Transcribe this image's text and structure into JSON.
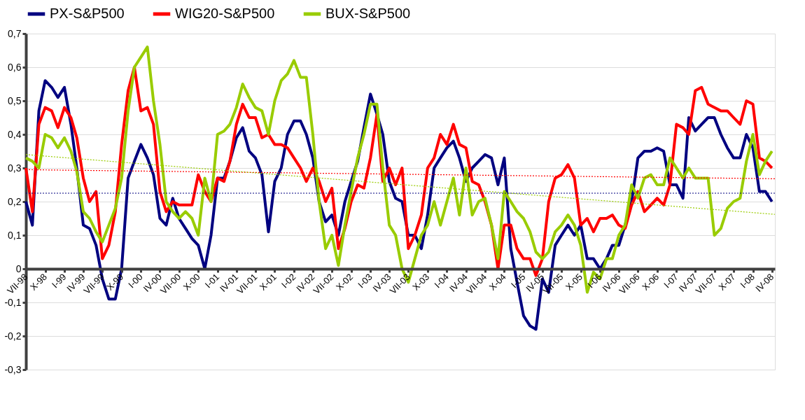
{
  "chart_data": {
    "type": "line",
    "x": [
      "1998-07",
      "1998-08",
      "1998-09",
      "1998-10",
      "1998-11",
      "1998-12",
      "1999-01",
      "1999-02",
      "1999-03",
      "1999-04",
      "1999-05",
      "1999-06",
      "1999-07",
      "1999-08",
      "1999-09",
      "1999-10",
      "1999-11",
      "1999-12",
      "2000-01",
      "2000-02",
      "2000-03",
      "2000-04",
      "2000-05",
      "2000-06",
      "2000-07",
      "2000-08",
      "2000-09",
      "2000-10",
      "2000-11",
      "2000-12",
      "2001-01",
      "2001-02",
      "2001-03",
      "2001-04",
      "2001-05",
      "2001-06",
      "2001-07",
      "2001-08",
      "2001-09",
      "2001-10",
      "2001-11",
      "2001-12",
      "2002-01",
      "2002-02",
      "2002-03",
      "2002-04",
      "2002-05",
      "2002-06",
      "2002-07",
      "2002-08",
      "2002-09",
      "2002-10",
      "2002-11",
      "2002-12",
      "2003-01",
      "2003-02",
      "2003-03",
      "2003-04",
      "2003-05",
      "2003-06",
      "2003-07",
      "2003-08",
      "2003-09",
      "2003-10",
      "2003-11",
      "2003-12",
      "2004-01",
      "2004-02",
      "2004-03",
      "2004-04",
      "2004-05",
      "2004-06",
      "2004-07",
      "2004-08",
      "2004-09",
      "2004-10",
      "2004-11",
      "2004-12",
      "2005-01",
      "2005-02",
      "2005-03",
      "2005-04",
      "2005-05",
      "2005-06",
      "2005-07",
      "2005-08",
      "2005-09",
      "2005-10",
      "2005-11",
      "2005-12",
      "2006-01",
      "2006-02",
      "2006-03",
      "2006-04",
      "2006-05",
      "2006-06",
      "2006-07",
      "2006-08",
      "2006-09",
      "2006-10",
      "2006-11",
      "2006-12",
      "2007-01",
      "2007-02",
      "2007-03",
      "2007-04",
      "2007-05",
      "2007-06",
      "2007-07",
      "2007-08",
      "2007-09",
      "2007-10",
      "2007-11",
      "2007-12",
      "2008-01",
      "2008-02",
      "2008-03",
      "2008-04"
    ],
    "xlim": [
      "1998-07",
      "2008-04-15"
    ],
    "xticks": [
      {
        "value": "1998-07",
        "label": "VII-98"
      },
      {
        "value": "1998-10",
        "label": "X-98"
      },
      {
        "value": "1999-01",
        "label": "I-99"
      },
      {
        "value": "1999-04",
        "label": "IV-99"
      },
      {
        "value": "1999-07",
        "label": "VII-99"
      },
      {
        "value": "1999-10",
        "label": "X-99"
      },
      {
        "value": "2000-01",
        "label": "I-00"
      },
      {
        "value": "2000-04",
        "label": "IV-00"
      },
      {
        "value": "2000-07",
        "label": "VII-00"
      },
      {
        "value": "2000-10",
        "label": "X-00"
      },
      {
        "value": "2001-01",
        "label": "I-01"
      },
      {
        "value": "2001-04",
        "label": "IV-01"
      },
      {
        "value": "2001-07",
        "label": "VII-01"
      },
      {
        "value": "2001-10",
        "label": "X-01"
      },
      {
        "value": "2002-01",
        "label": "I-02"
      },
      {
        "value": "2002-04",
        "label": "IV-02"
      },
      {
        "value": "2002-07",
        "label": "VII-02"
      },
      {
        "value": "2002-10",
        "label": "X-02"
      },
      {
        "value": "2003-01",
        "label": "I-03"
      },
      {
        "value": "2003-04",
        "label": "IV-03"
      },
      {
        "value": "2003-07",
        "label": "VII-03"
      },
      {
        "value": "2003-10",
        "label": "X-03"
      },
      {
        "value": "2004-01",
        "label": "I-04"
      },
      {
        "value": "2004-04",
        "label": "IV-04"
      },
      {
        "value": "2004-07",
        "label": "VII-04"
      },
      {
        "value": "2004-10",
        "label": "X-04"
      },
      {
        "value": "2005-01",
        "label": "I-05"
      },
      {
        "value": "2005-04",
        "label": "IV-05"
      },
      {
        "value": "2005-07",
        "label": "VII-05"
      },
      {
        "value": "2005-10",
        "label": "X-05"
      },
      {
        "value": "2006-01",
        "label": "I-06"
      },
      {
        "value": "2006-04",
        "label": "IV-06"
      },
      {
        "value": "2006-07",
        "label": "VII-06"
      },
      {
        "value": "2006-10",
        "label": "X-06"
      },
      {
        "value": "2007-01",
        "label": "I-07"
      },
      {
        "value": "2007-04",
        "label": "IV-07"
      },
      {
        "value": "2007-07",
        "label": "VII-07"
      },
      {
        "value": "2007-10",
        "label": "X-07"
      },
      {
        "value": "2008-01",
        "label": "I-08"
      },
      {
        "value": "2008-04",
        "label": "IV-08"
      }
    ],
    "ylim": [
      -0.3,
      0.7
    ],
    "yticks": [
      {
        "value": -0.3,
        "label": "-0,3"
      },
      {
        "value": -0.2,
        "label": "-0,2"
      },
      {
        "value": -0.1,
        "label": "-0,1"
      },
      {
        "value": 0,
        "label": "0"
      },
      {
        "value": 0.1,
        "label": "0,1"
      },
      {
        "value": 0.2,
        "label": "0,2"
      },
      {
        "value": 0.3,
        "label": "0,3"
      },
      {
        "value": 0.4,
        "label": "0,4"
      },
      {
        "value": 0.5,
        "label": "0,5"
      },
      {
        "value": 0.6,
        "label": "0,6"
      },
      {
        "value": 0.7,
        "label": "0,7"
      }
    ],
    "grid": "y",
    "legend": "top",
    "series": [
      {
        "name": "PX-S&P500",
        "color": "#000080",
        "line_style": "solid",
        "values": [
          0.2,
          0.13,
          0.47,
          0.56,
          0.54,
          0.51,
          0.54,
          0.43,
          0.3,
          0.13,
          0.12,
          0.07,
          -0.03,
          -0.09,
          -0.09,
          0.0,
          0.27,
          0.32,
          0.37,
          0.33,
          0.28,
          0.15,
          0.13,
          0.21,
          0.15,
          0.12,
          0.09,
          0.07,
          0.0,
          0.1,
          0.27,
          0.27,
          0.32,
          0.39,
          0.42,
          0.35,
          0.33,
          0.28,
          0.11,
          0.26,
          0.3,
          0.4,
          0.44,
          0.44,
          0.4,
          0.33,
          0.2,
          0.14,
          0.16,
          0.1,
          0.2,
          0.26,
          0.32,
          0.42,
          0.52,
          0.46,
          0.4,
          0.26,
          0.21,
          0.2,
          0.1,
          0.1,
          0.06,
          0.16,
          0.3,
          0.33,
          0.36,
          0.38,
          0.33,
          0.26,
          0.3,
          0.32,
          0.34,
          0.33,
          0.25,
          0.33,
          0.06,
          -0.04,
          -0.14,
          -0.17,
          -0.18,
          -0.03,
          -0.07,
          0.07,
          0.1,
          0.13,
          0.1,
          0.13,
          0.03,
          0.03,
          0.0,
          0.03,
          0.07,
          0.07,
          0.13,
          0.2,
          0.33,
          0.35,
          0.35,
          0.36,
          0.35,
          0.25,
          0.25,
          0.21,
          0.45,
          0.41,
          0.43,
          0.45,
          0.45,
          0.4,
          0.36,
          0.33,
          0.33,
          0.4,
          0.36,
          0.23,
          0.23,
          0.2
        ]
      },
      {
        "name": "WIG20-S&P500",
        "color": "#ff0000",
        "line_style": "solid",
        "values": [
          0.3,
          0.17,
          0.43,
          0.48,
          0.47,
          0.42,
          0.48,
          0.45,
          0.39,
          0.27,
          0.2,
          0.23,
          0.03,
          0.07,
          0.17,
          0.37,
          0.53,
          0.6,
          0.47,
          0.48,
          0.43,
          0.23,
          0.17,
          0.2,
          0.19,
          0.19,
          0.19,
          0.28,
          0.23,
          0.2,
          0.27,
          0.26,
          0.32,
          0.43,
          0.49,
          0.45,
          0.45,
          0.39,
          0.4,
          0.37,
          0.37,
          0.36,
          0.33,
          0.3,
          0.26,
          0.3,
          0.26,
          0.2,
          0.24,
          0.06,
          0.12,
          0.2,
          0.25,
          0.24,
          0.33,
          0.46,
          0.26,
          0.3,
          0.25,
          0.3,
          0.06,
          0.1,
          0.16,
          0.3,
          0.33,
          0.4,
          0.37,
          0.43,
          0.37,
          0.36,
          0.26,
          0.25,
          0.2,
          0.13,
          0.0,
          0.13,
          0.13,
          0.06,
          0.03,
          0.03,
          -0.02,
          0.03,
          0.2,
          0.27,
          0.28,
          0.31,
          0.27,
          0.13,
          0.15,
          0.11,
          0.15,
          0.15,
          0.16,
          0.13,
          0.12,
          0.19,
          0.23,
          0.17,
          0.19,
          0.21,
          0.19,
          0.25,
          0.43,
          0.42,
          0.4,
          0.53,
          0.54,
          0.49,
          0.48,
          0.47,
          0.47,
          0.45,
          0.43,
          0.5,
          0.49,
          0.33,
          0.32,
          0.3
        ]
      },
      {
        "name": "BUX-S&P500",
        "color": "#99cc00",
        "line_style": "solid",
        "values": [
          0.33,
          0.32,
          0.3,
          0.4,
          0.39,
          0.36,
          0.39,
          0.35,
          0.29,
          0.17,
          0.15,
          0.11,
          0.08,
          0.13,
          0.18,
          0.27,
          0.47,
          0.6,
          0.63,
          0.66,
          0.5,
          0.37,
          0.2,
          0.17,
          0.15,
          0.17,
          0.15,
          0.1,
          0.27,
          0.2,
          0.4,
          0.41,
          0.43,
          0.48,
          0.55,
          0.51,
          0.48,
          0.47,
          0.4,
          0.5,
          0.56,
          0.58,
          0.62,
          0.57,
          0.57,
          0.4,
          0.2,
          0.06,
          0.1,
          0.01,
          0.13,
          0.23,
          0.33,
          0.4,
          0.49,
          0.49,
          0.3,
          0.13,
          0.1,
          0.0,
          -0.04,
          0.03,
          0.1,
          0.13,
          0.2,
          0.13,
          0.2,
          0.27,
          0.16,
          0.3,
          0.16,
          0.2,
          0.21,
          0.13,
          0.03,
          0.23,
          0.2,
          0.17,
          0.15,
          0.11,
          0.05,
          0.03,
          0.05,
          0.11,
          0.13,
          0.16,
          0.13,
          0.07,
          -0.07,
          -0.01,
          -0.03,
          0.03,
          0.03,
          0.1,
          0.13,
          0.25,
          0.21,
          0.27,
          0.28,
          0.25,
          0.25,
          0.33,
          0.3,
          0.27,
          0.3,
          0.27,
          0.27,
          0.27,
          0.1,
          0.12,
          0.18,
          0.2,
          0.21,
          0.32,
          0.4,
          0.28,
          0.32,
          0.35
        ]
      },
      {
        "type": "line",
        "color": "#000080",
        "line_style": "dotted",
        "x": [
          "1998-07",
          "2008-04-15"
        ],
        "values": [
          0.225,
          0.225
        ]
      },
      {
        "type": "line",
        "color": "#ff0000",
        "line_style": "dotted",
        "x": [
          "1998-07",
          "2008-04-15"
        ],
        "values": [
          0.295,
          0.268
        ]
      },
      {
        "type": "line",
        "color": "#99cc00",
        "line_style": "dotted",
        "x": [
          "1998-07",
          "2008-04-15"
        ],
        "values": [
          0.34,
          0.162
        ]
      }
    ]
  }
}
